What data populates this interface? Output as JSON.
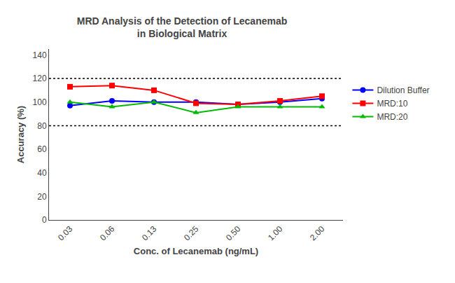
{
  "chart_data": {
    "type": "line",
    "title": "MRD Analysis of the Detection of Lecanemab\nin Biological Matrix",
    "xlabel": "Conc. of Lecanemab (ng/mL)",
    "ylabel": "Accuracy (%)",
    "categories": [
      "0.03",
      "0.06",
      "0.13",
      "0.25",
      "0.50",
      "1.00",
      "2.00"
    ],
    "series": [
      {
        "name": "Dilution Buffer",
        "color": "#0000FF",
        "marker": "circle",
        "values": [
          97,
          101,
          100,
          100,
          98,
          100,
          103
        ]
      },
      {
        "name": "MRD:10",
        "color": "#FF0000",
        "marker": "square",
        "values": [
          113,
          114,
          110,
          99,
          98,
          101,
          105
        ]
      },
      {
        "name": "MRD:20",
        "color": "#00BB00",
        "marker": "triangle-up",
        "values": [
          100,
          96,
          100,
          91,
          96,
          96,
          96
        ]
      }
    ],
    "reference_lines": [
      120,
      80
    ],
    "ylim": [
      0,
      145
    ],
    "yticks": [
      0,
      20,
      40,
      60,
      80,
      100,
      120,
      140
    ],
    "grid": false,
    "legend": "right"
  }
}
